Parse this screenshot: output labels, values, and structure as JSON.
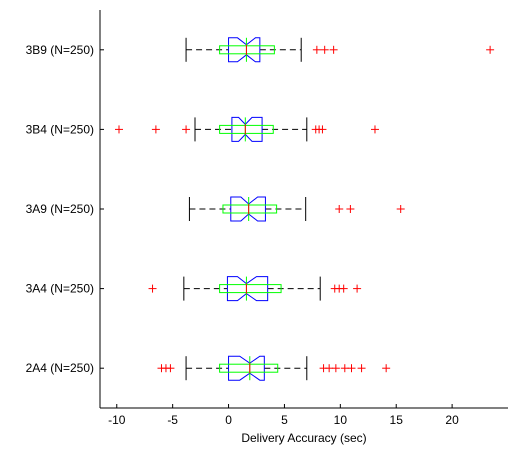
{
  "chart_data": {
    "type": "boxplot",
    "orientation": "horizontal",
    "xlabel": "Delivery Accuracy (sec)",
    "ylabel": "",
    "title": "",
    "xlim": [
      -11.5,
      25
    ],
    "xticks": [
      -10,
      -5,
      0,
      5,
      10,
      15,
      20
    ],
    "grid": false,
    "legend": "none",
    "colors": {
      "box": "#0000ff",
      "box_secondary": "#00ff00",
      "median": "#ff0000",
      "whisker": "#000000",
      "outlier": "#ff0000"
    },
    "categories": [
      "3B9 (N=250)",
      "3B4 (N=250)",
      "3A9 (N=250)",
      "3A4 (N=250)",
      "2A4 (N=250)"
    ],
    "boxes": [
      {
        "label": "3B9 (N=250)",
        "whisker_low": -3.8,
        "q1": 0,
        "median": 1.6,
        "q3": 2.8,
        "whisker_high": 6.5,
        "notch_low": 0.8,
        "notch_high": 2.4,
        "sec_q1": -0.8,
        "sec_median": 1.6,
        "sec_q3": 4.1,
        "outliers": [
          7.9,
          8.6,
          9.4,
          23.4
        ]
      },
      {
        "label": "3B4 (N=250)",
        "whisker_low": -3.0,
        "q1": 0.3,
        "median": 1.5,
        "q3": 3.0,
        "whisker_high": 7.0,
        "notch_low": 0.9,
        "notch_high": 2.1,
        "sec_q1": -0.8,
        "sec_median": 1.5,
        "sec_q3": 4.0,
        "outliers": [
          -9.8,
          -6.5,
          -3.8,
          7.8,
          8.1,
          8.4,
          13.1
        ]
      },
      {
        "label": "3A9 (N=250)",
        "whisker_low": -3.5,
        "q1": 0.2,
        "median": 1.8,
        "q3": 3.3,
        "whisker_high": 6.9,
        "notch_low": 1.1,
        "notch_high": 2.6,
        "sec_q1": -0.5,
        "sec_median": 1.8,
        "sec_q3": 4.3,
        "outliers": [
          9.9,
          10.9,
          15.4
        ]
      },
      {
        "label": "3A4 (N=250)",
        "whisker_low": -4.0,
        "q1": -0.1,
        "median": 1.6,
        "q3": 3.5,
        "whisker_high": 8.2,
        "notch_low": 0.8,
        "notch_high": 2.5,
        "sec_q1": -0.8,
        "sec_median": 1.6,
        "sec_q3": 4.7,
        "outliers": [
          -6.8,
          9.5,
          9.9,
          10.3,
          11.5
        ]
      },
      {
        "label": "2A4 (N=250)",
        "whisker_low": -3.8,
        "q1": 0.0,
        "median": 1.9,
        "q3": 3.2,
        "whisker_high": 7.0,
        "notch_low": 1.0,
        "notch_high": 2.8,
        "sec_q1": -0.8,
        "sec_median": 1.9,
        "sec_q3": 4.4,
        "outliers": [
          -6.0,
          -5.6,
          -5.2,
          8.5,
          9.0,
          9.6,
          10.4,
          11.0,
          11.9,
          14.1
        ]
      }
    ]
  }
}
